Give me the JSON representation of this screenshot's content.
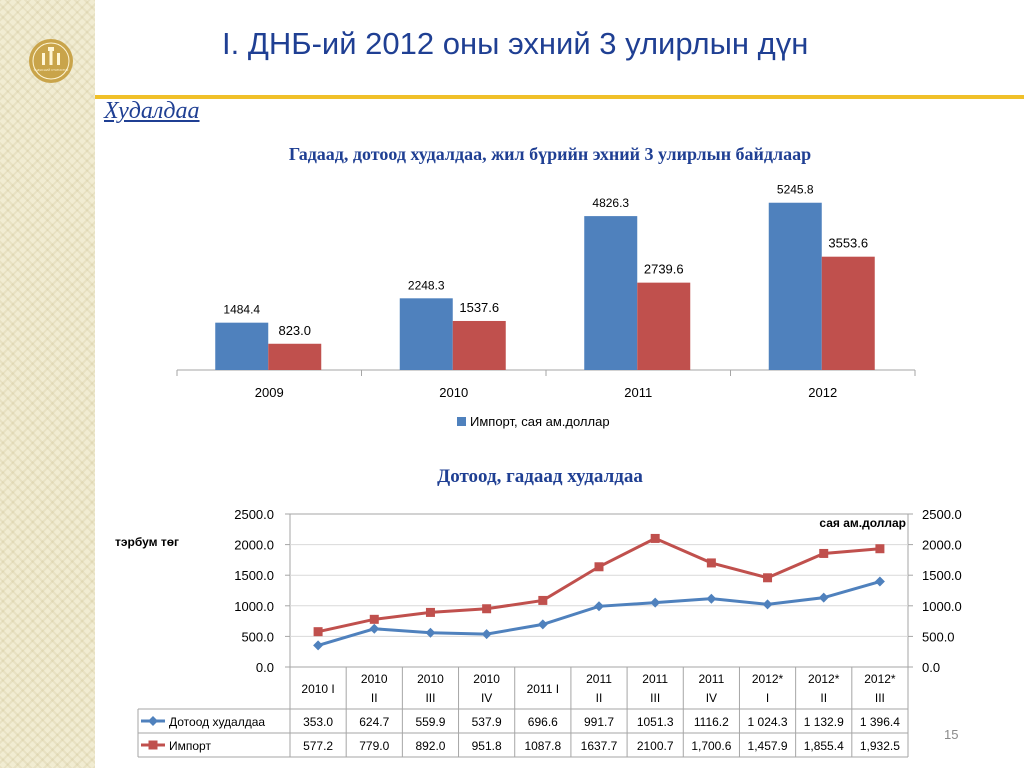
{
  "slide": {
    "title": "I. ДНБ-ий 2012 оны эхний 3 улирлын дүн",
    "section": "Худалдаа",
    "page_number": "15"
  },
  "colors": {
    "import": "#4f81bd",
    "export": "#c0504d",
    "title": "#1f3f93",
    "accent_rule": "#f0c029"
  },
  "logo": {
    "icon": "mongolian-statistics-emblem-icon",
    "text": "ҮНДЭСНИЙ СТАТИСТИК"
  },
  "chart_data": [
    {
      "type": "bar",
      "title": "Гадаад, дотоод худалдаа, жил бүрийн эхний 3 улирлын байдлаар",
      "categories": [
        "2009",
        "2010",
        "2011",
        "2012"
      ],
      "series": [
        {
          "name": "Импорт, сая ам.доллар",
          "values": [
            1484.4,
            2248.3,
            4826.3,
            5245.8
          ],
          "labels": [
            "1484.4",
            "2248.3",
            "4826.3",
            "5245.8"
          ]
        },
        {
          "values": [
            823.0,
            1537.6,
            2739.6,
            3553.6
          ],
          "labels": [
            "823.0",
            "1537.6",
            "2739.6",
            "3553.6"
          ]
        }
      ],
      "legend": "bottom"
    },
    {
      "type": "line",
      "title": "Дотоод, гадаад худалдаа",
      "ylabel_left": "тэрбум төг",
      "ylabel_right": "сая ам.доллар",
      "ylim": [
        0,
        2500
      ],
      "yticks": [
        "0.0",
        "500.0",
        "1000.0",
        "1500.0",
        "2000.0",
        "2500.0"
      ],
      "categories": [
        [
          "2010 I"
        ],
        [
          "2010",
          "II"
        ],
        [
          "2010",
          "III"
        ],
        [
          "2010",
          "IV"
        ],
        [
          "2011 I"
        ],
        [
          "2011",
          "II"
        ],
        [
          "2011",
          "III"
        ],
        [
          "2011",
          "IV"
        ],
        [
          "2012*",
          "I"
        ],
        [
          "2012*",
          "II"
        ],
        [
          "2012*",
          "III"
        ]
      ],
      "series": [
        {
          "name": "Дотоод худалдаа",
          "values": [
            353.0,
            624.7,
            559.9,
            537.9,
            696.6,
            991.7,
            1051.3,
            1116.2,
            1024.3,
            1132.9,
            1396.4
          ],
          "labels": [
            "353.0",
            "624.7",
            "559.9",
            "537.9",
            "696.6",
            "991.7",
            "1051.3",
            "1116.2",
            "1 024.3",
            "1 132.9",
            "1 396.4"
          ]
        },
        {
          "name": "Импорт",
          "values": [
            577.2,
            779.0,
            892.0,
            951.8,
            1087.8,
            1637.7,
            2100.7,
            1700.6,
            1457.9,
            1855.4,
            1932.5
          ],
          "labels": [
            "577.2",
            "779.0",
            "892.0",
            "951.8",
            "1087.8",
            "1637.7",
            "2100.7",
            "1,700.6",
            "1,457.9",
            "1,855.4",
            "1,932.5"
          ]
        }
      ],
      "legend": "table-bottom"
    }
  ]
}
